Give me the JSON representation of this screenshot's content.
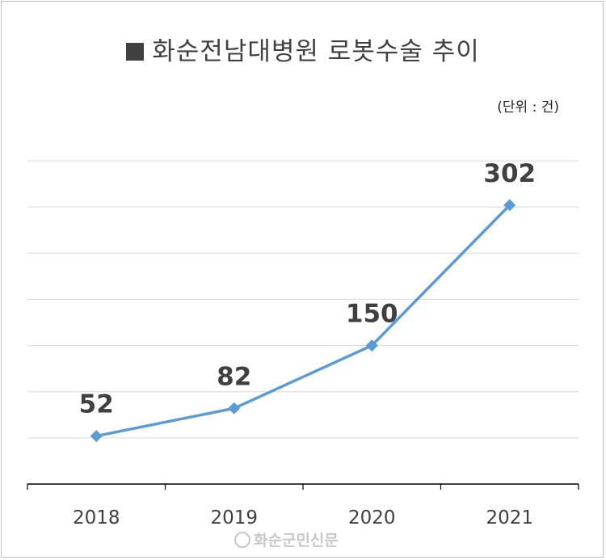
{
  "chart_data": {
    "type": "line",
    "title": "화순전남대병원 로봇수술 추이",
    "unit_note": "(단위 : 건)",
    "categories": [
      "2018",
      "2019",
      "2020",
      "2021"
    ],
    "series": [
      {
        "values": [
          52,
          82,
          150,
          302
        ]
      }
    ],
    "ylim": [
      0,
      350
    ],
    "grid": true,
    "line_color": "#5b9bd5"
  },
  "watermark": "화순군민신문"
}
